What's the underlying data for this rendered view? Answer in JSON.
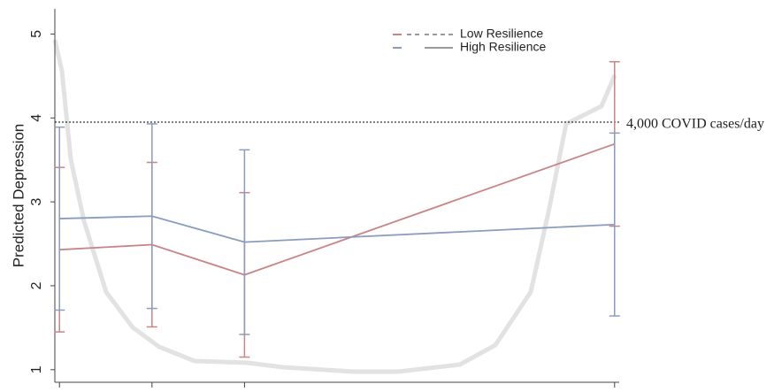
{
  "chart_data": {
    "type": "line",
    "y_label": "Predicted Depression",
    "x": [
      1,
      2,
      3,
      7
    ],
    "xlim": [
      0.95,
      7.05
    ],
    "ylim": [
      0.85,
      5.3
    ],
    "yticks": [
      1,
      2,
      3,
      4,
      5
    ],
    "series": [
      {
        "name": "Low Resilience",
        "color": "#c98486",
        "values": [
          2.43,
          2.49,
          2.13,
          3.69
        ],
        "errors": [
          0.98,
          0.98,
          0.98,
          0.98
        ]
      },
      {
        "name": "High Resilience",
        "color": "#8a9cbf",
        "values": [
          2.8,
          2.83,
          2.52,
          2.73
        ],
        "errors": [
          1.09,
          1.1,
          1.1,
          1.09
        ]
      }
    ],
    "reference_line": {
      "value": 3.95,
      "label": "4,000 COVID cases/day"
    }
  }
}
